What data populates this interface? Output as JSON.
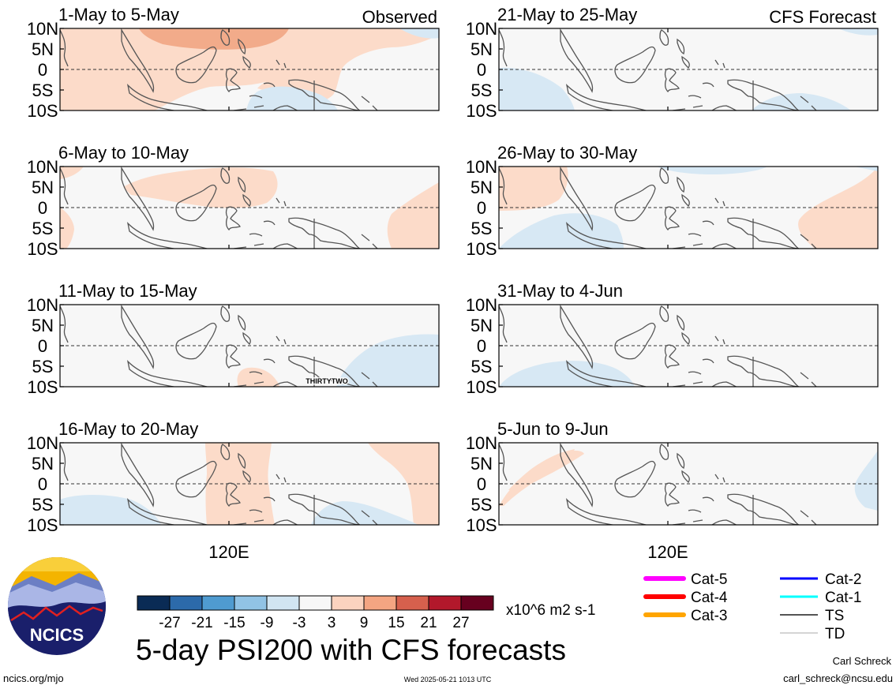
{
  "chart_data": [
    {
      "type": "heatmap",
      "title": "1-May to 5-May",
      "corner_label": "Observed",
      "y_tick_labels": [
        "10N",
        "5N",
        "0",
        "5S",
        "10S"
      ],
      "shading": "positive (orange) over northern South China Sea/Philippines; light orange across western and central domain; light blue south of equator near 125-135E"
    },
    {
      "type": "heatmap",
      "title": "6-May to 10-May",
      "y_tick_labels": [
        "10N",
        "5N",
        "0",
        "5S",
        "10S"
      ],
      "shading": "light orange over 100-130E north of equator and far east; neutral elsewhere"
    },
    {
      "type": "heatmap",
      "title": "11-May to 15-May",
      "y_tick_labels": [
        "10N",
        "5N",
        "0",
        "5S",
        "10S"
      ],
      "shading": "mostly neutral; light blue east of 140E south of equator; small light orange near 126E 8S"
    },
    {
      "type": "heatmap",
      "title": "16-May to 20-May",
      "y_tick_labels": [
        "10N",
        "5N",
        "0",
        "5S",
        "10S"
      ],
      "x_tick_labels": [
        "120E"
      ],
      "shading": "light orange band 114-128E and east of 145E; light blue southwest and southeast"
    },
    {
      "type": "heatmap",
      "title": "21-May to 25-May",
      "corner_label": "CFS Forecast",
      "y_tick_labels": [
        "10N",
        "5N",
        "0",
        "5S",
        "10S"
      ],
      "shading": "mostly neutral; light blue far west south of equator and around New Guinea south coast"
    },
    {
      "type": "heatmap",
      "title": "26-May to 30-May",
      "y_tick_labels": [
        "10N",
        "5N",
        "0",
        "5S",
        "10S"
      ],
      "shading": "light orange far west north of equator and far east; light blue southwest"
    },
    {
      "type": "heatmap",
      "title": "31-May to 4-Jun",
      "y_tick_labels": [
        "10N",
        "5N",
        "0",
        "5S",
        "10S"
      ],
      "shading": "light blue in far southwest; neutral elsewhere"
    },
    {
      "type": "heatmap",
      "title": "5-Jun to 9-Jun",
      "y_tick_labels": [
        "10N",
        "5N",
        "0",
        "5S",
        "10S"
      ],
      "x_tick_labels": [
        "120E"
      ],
      "shading": "light orange in western portion; light blue far east"
    }
  ],
  "map_annotation": "THIRTYTWO",
  "colorbar": {
    "colors": [
      "#0a2b55",
      "#2c6aaa",
      "#4f9bd0",
      "#91c3e5",
      "#d1e5f2",
      "#f7f7f7",
      "#fbd3bf",
      "#f4a582",
      "#d6604d",
      "#b2182b",
      "#67001f"
    ],
    "tick_labels": [
      "-27",
      "-21",
      "-15",
      "-9",
      "-3",
      "3",
      "9",
      "15",
      "21",
      "27"
    ],
    "units": "x10^6 m2 s-1"
  },
  "legend": {
    "left": [
      {
        "label": "Cat-5",
        "color": "#ff00ff"
      },
      {
        "label": "Cat-4",
        "color": "#ff0000"
      },
      {
        "label": "Cat-3",
        "color": "#ffa500"
      }
    ],
    "right": [
      {
        "label": "Cat-2",
        "color": "#0000ff"
      },
      {
        "label": "Cat-1",
        "color": "#00ffff"
      },
      {
        "label": "TS",
        "color": "#555555"
      },
      {
        "label": "TD",
        "color": "#aaaaaa"
      }
    ]
  },
  "logo_text": "NCICS",
  "main_title": "5-day PSI200 with CFS forecasts",
  "footer": {
    "left": "ncics.org/mjo",
    "center": "Wed 2025-05-21 1013 UTC",
    "author": "Carl Schreck",
    "email": "carl_schreck@ncsu.edu"
  },
  "colors": {
    "orange_light": "#fcdbc9",
    "orange_mid": "#f2ab8a",
    "blue_light": "#d7e8f4",
    "neutral": "#f7f7f7",
    "coast": "#555555"
  }
}
